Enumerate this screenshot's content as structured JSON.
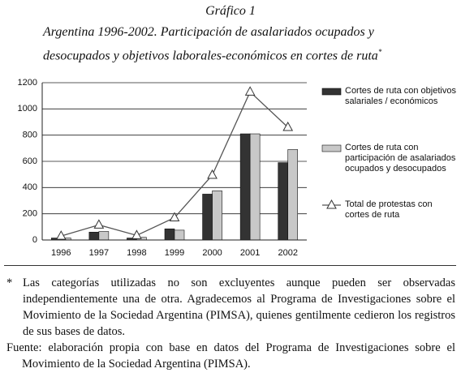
{
  "chart_data": {
    "type": "bar",
    "title": "Gráfico 1",
    "subtitle": "Argentina 1996-2002. Participación de asalariados ocupados y desocupados y objetivos laborales-económicos en cortes de ruta",
    "subtitle_mark": "*",
    "categories": [
      "1996",
      "1997",
      "1998",
      "1999",
      "2000",
      "2001",
      "2002"
    ],
    "series": [
      {
        "name": "Cortes de ruta con objetivos salariales / económicos",
        "type": "bar",
        "color": "#333333",
        "values": [
          15,
          60,
          15,
          85,
          350,
          810,
          590
        ]
      },
      {
        "name": "Cortes de ruta con participación de asalariados ocupados y desocupados",
        "type": "bar",
        "color": "#c8c8c8",
        "values": [
          15,
          65,
          20,
          75,
          375,
          810,
          690
        ]
      },
      {
        "name": "Total de protestas con cortes de ruta",
        "type": "line",
        "color": "#555555",
        "values": [
          30,
          115,
          35,
          170,
          495,
          1130,
          860
        ]
      }
    ],
    "ylim": [
      0,
      1200
    ],
    "yticks": [
      0,
      200,
      400,
      600,
      800,
      1000,
      1200
    ],
    "grid": true
  },
  "footnote": {
    "mark": "*",
    "text": "Las categorías utilizadas no son excluyentes aunque pueden ser observadas independientemente una de otra. Agradecemos al Programa de Investigaciones sobre el Movimiento de la Sociedad Argentina (PIMSA), quienes gentilmente cedieron los registros de sus bases de datos."
  },
  "source": "Fuente: elaboración propia con base en datos del Programa de Investigaciones sobre el Movimiento de la Sociedad Argentina (PIMSA)."
}
